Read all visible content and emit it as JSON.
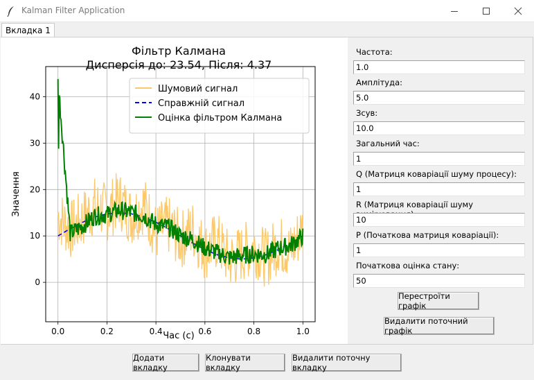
{
  "window": {
    "title": "Kalman Filter Application"
  },
  "tabs": [
    {
      "label": "Вкладка 1",
      "active": true
    }
  ],
  "chart_title_line1": "Фільтр Калмана",
  "chart_title_line2": "Дисперсія до: 23.54, Після: 4.37",
  "chart_data": {
    "type": "line",
    "title": "Фільтр Калмана\nДисперсія до: 23.54, Після: 4.37",
    "xlabel": "Час (с)",
    "ylabel": "Значення",
    "xlim": [
      -0.05,
      1.05
    ],
    "ylim": [
      -8.5,
      46.5
    ],
    "xticks": [
      "0.0",
      "0.2",
      "0.4",
      "0.6",
      "0.8",
      "1.0"
    ],
    "yticks": [
      "0",
      "10",
      "20",
      "30",
      "40"
    ],
    "grid": true,
    "legend_position": "top-right",
    "x": [
      0.0,
      0.05,
      0.1,
      0.15,
      0.2,
      0.25,
      0.3,
      0.35,
      0.4,
      0.45,
      0.5,
      0.55,
      0.6,
      0.65,
      0.7,
      0.75,
      0.8,
      0.85,
      0.9,
      0.95,
      1.0
    ],
    "series": [
      {
        "name": "Шумовий сигнал",
        "color": "#fcc86a",
        "style": "solid",
        "values": [
          14.5,
          11.2,
          13.6,
          16.4,
          15.1,
          17.8,
          14.2,
          16.9,
          10.6,
          12.3,
          9.1,
          11.4,
          6.8,
          8.9,
          4.7,
          6.2,
          7.9,
          5.1,
          8.3,
          6.7,
          11.8
        ]
      },
      {
        "name": "Справжній сигнал",
        "color": "#0000ff",
        "style": "dashed",
        "values": [
          10.0,
          11.55,
          12.94,
          14.05,
          14.76,
          15.0,
          14.76,
          14.05,
          12.94,
          11.55,
          10.0,
          8.45,
          7.06,
          5.95,
          5.24,
          5.0,
          5.24,
          5.95,
          7.06,
          8.45,
          10.0
        ]
      },
      {
        "name": "Оцінка фільтром Калмана",
        "color": "#008000",
        "style": "solid",
        "values": [
          43.8,
          10.5,
          12.1,
          14.3,
          14.6,
          15.6,
          15.0,
          14.4,
          12.5,
          11.9,
          10.1,
          9.2,
          7.4,
          6.4,
          5.3,
          5.8,
          6.1,
          6.0,
          7.3,
          8.0,
          9.9
        ]
      }
    ]
  },
  "fields": [
    {
      "label": "Частота:",
      "value": "1.0"
    },
    {
      "label": "Амплітуда:",
      "value": "5.0"
    },
    {
      "label": "Зсув:",
      "value": "10.0"
    },
    {
      "label": "Загальний час:",
      "value": "1"
    },
    {
      "label": "Q (Матриця коваріації шуму процесу):",
      "value": "1"
    },
    {
      "label": "R (Матриця коваріації шуму вимірювання):",
      "value": "10"
    },
    {
      "label": "P (Початкова матриця коваріації):",
      "value": "1"
    },
    {
      "label": "Початкова оцінка стану:",
      "value": "50"
    }
  ],
  "buttons": {
    "rebuild": "Перестроїти графік",
    "delete_plot": "Видалити поточний графік",
    "add_tab": "Додати вкладку",
    "clone_tab": "Клонувати вкладку",
    "delete_tab": "Видалити поточну вкладку"
  }
}
